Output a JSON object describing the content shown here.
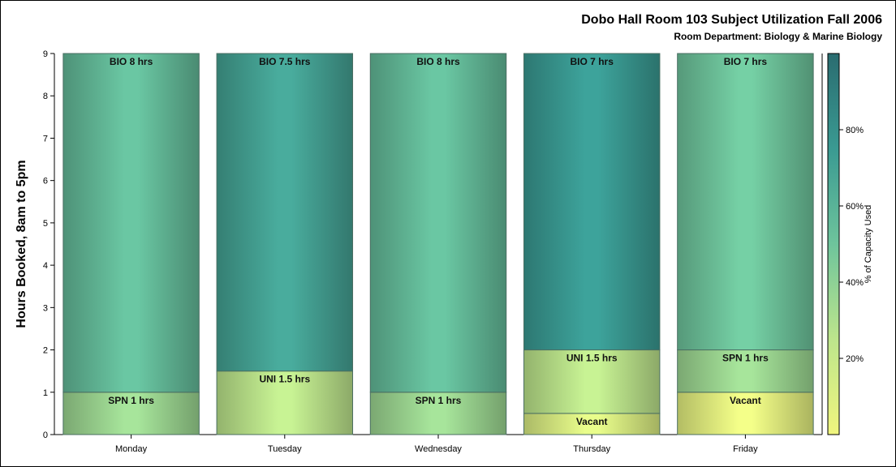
{
  "chart_data": {
    "type": "bar",
    "stacked": true,
    "title": "Dobo Hall Room 103 Subject Utilization Fall 2006",
    "subtitle": "Room Department:  Biology & Marine Biology",
    "xlabel": "",
    "ylabel": "Hours Booked, 8am to 5pm",
    "ylim": [
      0,
      9
    ],
    "yticks": [
      0,
      1,
      2,
      3,
      4,
      5,
      6,
      7,
      8,
      9
    ],
    "categories": [
      "Monday",
      "Tuesday",
      "Wednesday",
      "Thursday",
      "Friday"
    ],
    "bars": [
      {
        "category": "Monday",
        "segments": [
          {
            "label": "SPN 1 hrs",
            "hours": 1,
            "capacity_pct": 35
          },
          {
            "label": "BIO 8 hrs",
            "hours": 8,
            "capacity_pct": 55
          }
        ]
      },
      {
        "category": "Tuesday",
        "segments": [
          {
            "label": "UNI 1.5 hrs",
            "hours": 1.5,
            "capacity_pct": 25
          },
          {
            "label": "BIO 7.5 hrs",
            "hours": 7.5,
            "capacity_pct": 70
          }
        ]
      },
      {
        "category": "Wednesday",
        "segments": [
          {
            "label": "SPN 1 hrs",
            "hours": 1,
            "capacity_pct": 35
          },
          {
            "label": "BIO 8 hrs",
            "hours": 8,
            "capacity_pct": 55
          }
        ]
      },
      {
        "category": "Thursday",
        "segments": [
          {
            "label": "Vacant",
            "hours": 0.5,
            "capacity_pct": 10
          },
          {
            "label": "UNI 1.5 hrs",
            "hours": 1.5,
            "capacity_pct": 25
          },
          {
            "label": "BIO 7 hrs",
            "hours": 7,
            "capacity_pct": 75
          }
        ]
      },
      {
        "category": "Friday",
        "segments": [
          {
            "label": "Vacant",
            "hours": 1,
            "capacity_pct": 5
          },
          {
            "label": "SPN 1 hrs",
            "hours": 1,
            "capacity_pct": 35
          },
          {
            "label": "BIO 7 hrs",
            "hours": 7,
            "capacity_pct": 50
          }
        ]
      }
    ],
    "color_legend": {
      "title": "% of Capacity Used",
      "range": [
        0,
        100
      ],
      "ticks": [
        20,
        40,
        60,
        80
      ],
      "tick_labels": [
        "20%",
        "40%",
        "60%",
        "80%"
      ],
      "colors": [
        "#f0f57e",
        "#bde58c",
        "#6ec49c",
        "#3a9a92",
        "#2a6c70"
      ],
      "placement": "right"
    },
    "grid": false,
    "legend": "right"
  }
}
